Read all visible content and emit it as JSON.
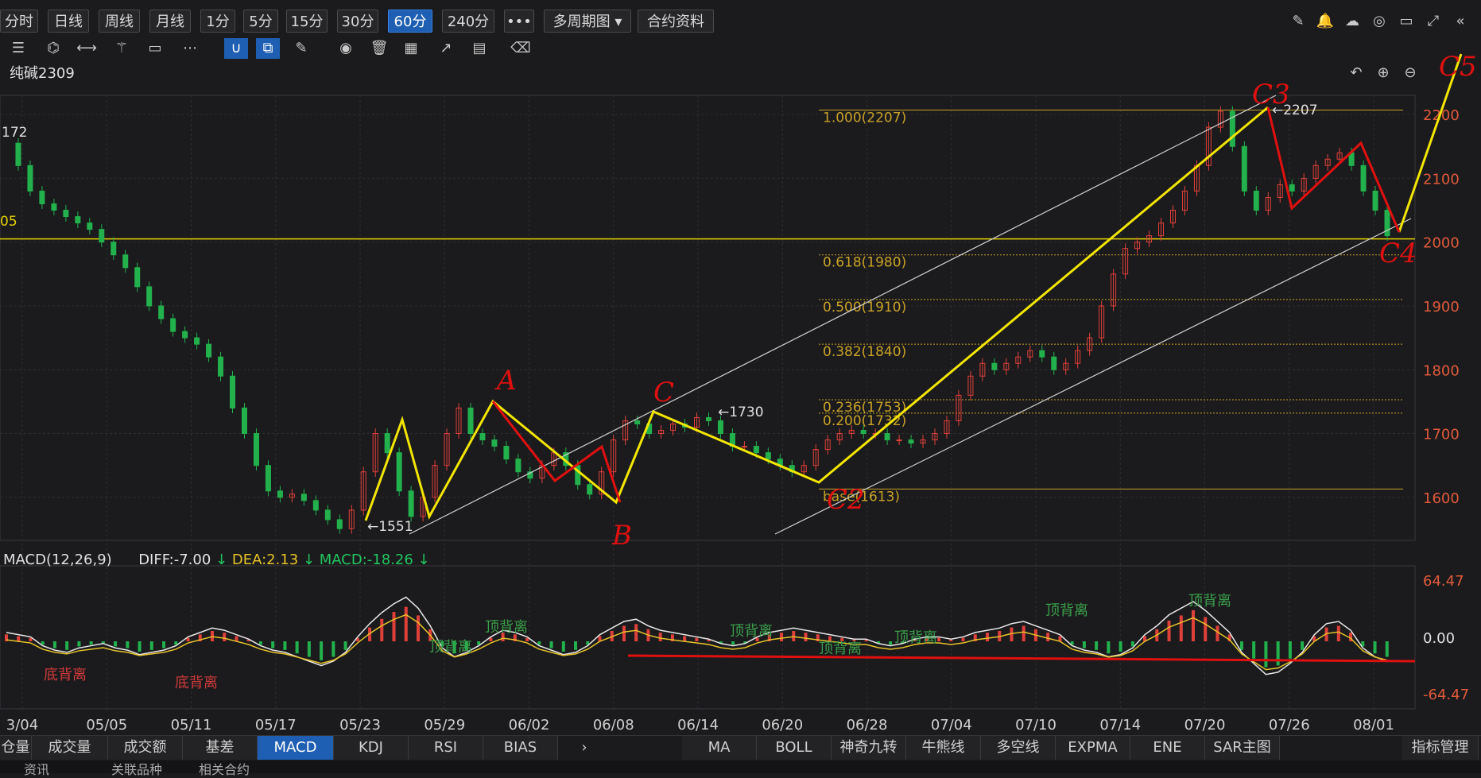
{
  "periods": [
    "分时",
    "日线",
    "周线",
    "月线",
    "1分",
    "5分",
    "15分",
    "30分",
    "60分",
    "240分",
    "•••",
    "多周期图 ▾",
    "合约资料"
  ],
  "active_period": "60分",
  "toolbar_icons": [
    "list-icon",
    "node-icon",
    "segment-icon",
    "wand-icon",
    "comment-icon",
    "more-icon",
    "magnet-icon",
    "copy-icon",
    "pen-icon",
    "eye-icon",
    "trash-icon",
    "grid-icon",
    "share-icon",
    "note-icon",
    "eraser-icon"
  ],
  "right_icons": [
    "pencil-icon",
    "bell-icon",
    "cloud-icon",
    "camera-icon",
    "screen-icon",
    "fullscreen-icon",
    "collapse-icon"
  ],
  "title": "纯碱2309",
  "bottom_tabs_left": [
    "仓量",
    "成交量",
    "成交额",
    "基差",
    "MACD",
    "KDJ",
    "RSI",
    "BIAS"
  ],
  "active_indicator": "MACD",
  "bottom_tabs_right": [
    "MA",
    "BOLL",
    "神奇九转",
    "牛熊线",
    "多空线",
    "EXPMA",
    "ENE",
    "SAR主图"
  ],
  "indicator_manage": "指标管理",
  "footer": [
    "资讯",
    "关联品种",
    "相关合约"
  ],
  "macd": {
    "label": "MACD(12,26,9)",
    "diff": "DIFF:-7.00",
    "dea": "DEA:2.13",
    "macd": "MACD:-18.26"
  },
  "chart_data": {
    "type": "line",
    "price_axis": {
      "ticks": [
        2200,
        2100,
        2000,
        1900,
        1800,
        1700,
        1600
      ],
      "ylim": [
        1545,
        2230
      ]
    },
    "macd_axis": {
      "ticks": [
        "64.47",
        "0.00",
        "-64.47"
      ]
    },
    "date_ticks": [
      "3/04",
      "05/05",
      "05/11",
      "05/17",
      "05/23",
      "05/29",
      "06/02",
      "06/08",
      "06/14",
      "06/20",
      "06/28",
      "07/04",
      "07/10",
      "07/14",
      "07/20",
      "07/26",
      "08/01"
    ],
    "price_labels": [
      "172",
      "05",
      "←1551",
      "←1730",
      "←2207"
    ],
    "fib_levels": [
      {
        "label": "1.000(2207)",
        "value": 2207
      },
      {
        "label": "0.618(1980)",
        "value": 1980
      },
      {
        "label": "0.500(1910)",
        "value": 1910
      },
      {
        "label": "0.382(1840)",
        "value": 1840
      },
      {
        "label": "0.236(1753)",
        "value": 1753
      },
      {
        "label": "0.200(1732)",
        "value": 1732
      },
      {
        "label": "base(1613)",
        "value": 1613
      }
    ],
    "horizontal_line": 2005,
    "price_series": [
      2155,
      2120,
      2080,
      2060,
      2050,
      2040,
      2030,
      2020,
      2000,
      1980,
      1960,
      1930,
      1900,
      1880,
      1860,
      1850,
      1840,
      1820,
      1790,
      1740,
      1700,
      1650,
      1610,
      1600,
      1605,
      1595,
      1580,
      1565,
      1551,
      1580,
      1640,
      1700,
      1670,
      1610,
      1570,
      1600,
      1650,
      1700,
      1740,
      1700,
      1690,
      1680,
      1660,
      1640,
      1630,
      1650,
      1670,
      1650,
      1620,
      1605,
      1640,
      1690,
      1720,
      1715,
      1700,
      1705,
      1715,
      1710,
      1725,
      1720,
      1700,
      1680,
      1680,
      1670,
      1660,
      1650,
      1640,
      1650,
      1675,
      1690,
      1700,
      1705,
      1700,
      1700,
      1690,
      1690,
      1685,
      1690,
      1700,
      1720,
      1760,
      1790,
      1810,
      1800,
      1810,
      1820,
      1830,
      1820,
      1800,
      1810,
      1830,
      1850,
      1900,
      1950,
      1990,
      2000,
      2010,
      2030,
      2050,
      2080,
      2120,
      2180,
      2205,
      2150,
      2080,
      2050,
      2070,
      2090,
      2080,
      2100,
      2120,
      2130,
      2140,
      2120,
      2080,
      2050,
      2010
    ],
    "wave_labels": [
      "A",
      "B",
      "C",
      "C2",
      "C3",
      "C4",
      "C5"
    ],
    "macd_hist": [
      8,
      6,
      4,
      -4,
      -8,
      -10,
      -6,
      -4,
      -2,
      -6,
      -8,
      -12,
      -10,
      -8,
      -4,
      4,
      8,
      12,
      10,
      6,
      2,
      -4,
      -8,
      -10,
      -14,
      -18,
      -22,
      -18,
      -10,
      4,
      16,
      26,
      34,
      40,
      30,
      14,
      -6,
      -14,
      -10,
      -4,
      4,
      10,
      8,
      4,
      -4,
      -8,
      -12,
      -10,
      -4,
      6,
      12,
      18,
      20,
      14,
      10,
      8,
      6,
      4,
      2,
      -2,
      -4,
      -2,
      4,
      8,
      10,
      12,
      10,
      8,
      6,
      4,
      2,
      2,
      -2,
      -4,
      -2,
      2,
      4,
      4,
      2,
      4,
      8,
      10,
      12,
      16,
      18,
      14,
      10,
      6,
      -4,
      -8,
      -10,
      -14,
      -12,
      -6,
      6,
      14,
      24,
      30,
      36,
      28,
      18,
      8,
      -10,
      -20,
      -30,
      -28,
      -20,
      -10,
      6,
      16,
      18,
      10,
      -6,
      -14,
      -18
    ],
    "annotations": [
      "底背离",
      "底背离",
      "顶背离",
      "顶背离",
      "顶背离",
      "顶背离",
      "顶背离",
      "顶背离",
      "顶背离"
    ]
  }
}
